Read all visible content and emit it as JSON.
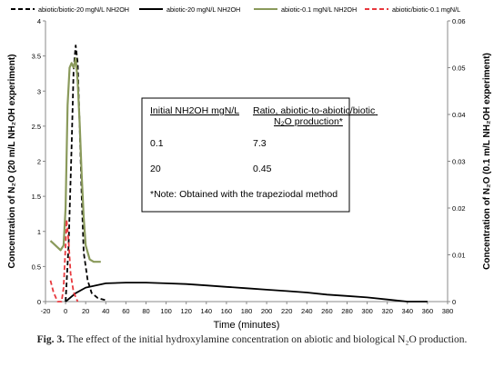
{
  "caption": {
    "label": "Fig. 3.",
    "text": "The effect of the initial hydroxylamine concentration on abiotic and biological N₂O production."
  },
  "table": {
    "headers": [
      "Initial NH2OH mgN/L",
      "Ratio, abiotic-to-abiotic/biotic N₂O production*"
    ],
    "rows": [
      [
        "0.1",
        "7.3"
      ],
      [
        "20",
        "0.45"
      ]
    ],
    "note": "*Note: Obtained with the trapeziodal method"
  },
  "chart_data": {
    "type": "line",
    "title": "",
    "xlabel": "Time (minutes)",
    "ylabel_left": "Concentration of N₂O (20 m/L NH₂OH experiment)",
    "ylabel_right": "Concentration of N₂O (0.1 m/L NH₂OH experiment)",
    "xlim": [
      -20,
      380
    ],
    "ylim_left": [
      0,
      4
    ],
    "ylim_right": [
      0,
      0.06
    ],
    "x_ticks": [
      -20,
      0,
      20,
      40,
      60,
      80,
      100,
      120,
      140,
      160,
      180,
      200,
      220,
      240,
      260,
      280,
      300,
      320,
      340,
      360,
      380
    ],
    "y_ticks_left": [
      0,
      0.5,
      1,
      1.5,
      2,
      2.5,
      3,
      3.5,
      4
    ],
    "y_ticks_right": [
      0,
      0.01,
      0.02,
      0.03,
      0.04,
      0.05,
      0.06
    ],
    "legend_position": "top",
    "series": [
      {
        "name": "abiotic/biotic-20 mgN/L NH2OH",
        "axis": "left",
        "color": "#000000",
        "style": "dashed",
        "points": [
          [
            0,
            0.0
          ],
          [
            3,
            0.8
          ],
          [
            6,
            2.2
          ],
          [
            8,
            3.3
          ],
          [
            10,
            3.65
          ],
          [
            12,
            3.4
          ],
          [
            14,
            2.5
          ],
          [
            16,
            1.5
          ],
          [
            18,
            0.7
          ],
          [
            22,
            0.3
          ],
          [
            26,
            0.12
          ],
          [
            32,
            0.05
          ],
          [
            40,
            0.02
          ]
        ]
      },
      {
        "name": "abiotic-20 mgN/L NH2OH",
        "axis": "left",
        "color": "#000000",
        "style": "solid",
        "points": [
          [
            0,
            0.0
          ],
          [
            10,
            0.12
          ],
          [
            20,
            0.2
          ],
          [
            40,
            0.26
          ],
          [
            60,
            0.27
          ],
          [
            80,
            0.27
          ],
          [
            100,
            0.26
          ],
          [
            120,
            0.25
          ],
          [
            140,
            0.23
          ],
          [
            160,
            0.21
          ],
          [
            180,
            0.19
          ],
          [
            200,
            0.17
          ],
          [
            220,
            0.15
          ],
          [
            240,
            0.13
          ],
          [
            260,
            0.1
          ],
          [
            280,
            0.08
          ],
          [
            300,
            0.06
          ],
          [
            320,
            0.03
          ],
          [
            340,
            0.0
          ],
          [
            360,
            0.0
          ]
        ]
      },
      {
        "name": "abiotic-0.1 mgN/L NH2OH",
        "axis": "right",
        "color": "#8a9a5b",
        "style": "solid",
        "points": [
          [
            -15,
            0.013
          ],
          [
            -10,
            0.012
          ],
          [
            -5,
            0.011
          ],
          [
            -2,
            0.012
          ],
          [
            0,
            0.02
          ],
          [
            2,
            0.042
          ],
          [
            4,
            0.05
          ],
          [
            6,
            0.051
          ],
          [
            8,
            0.05
          ],
          [
            10,
            0.052
          ],
          [
            12,
            0.047
          ],
          [
            14,
            0.038
          ],
          [
            16,
            0.027
          ],
          [
            18,
            0.018
          ],
          [
            20,
            0.012
          ],
          [
            24,
            0.009
          ],
          [
            28,
            0.0085
          ],
          [
            35,
            0.0085
          ]
        ]
      },
      {
        "name": "abiotic/biotic-0.1 mgN/L",
        "axis": "right",
        "color": "#e8383d",
        "style": "dashed",
        "points": [
          [
            -15,
            0.0045
          ],
          [
            -12,
            0.002
          ],
          [
            -8,
            0.0
          ],
          [
            -4,
            0.0
          ],
          [
            -2,
            0.003
          ],
          [
            0,
            0.012
          ],
          [
            1,
            0.0175
          ],
          [
            3,
            0.013
          ],
          [
            5,
            0.006
          ],
          [
            8,
            0.002
          ],
          [
            12,
            0.0
          ]
        ]
      }
    ]
  }
}
